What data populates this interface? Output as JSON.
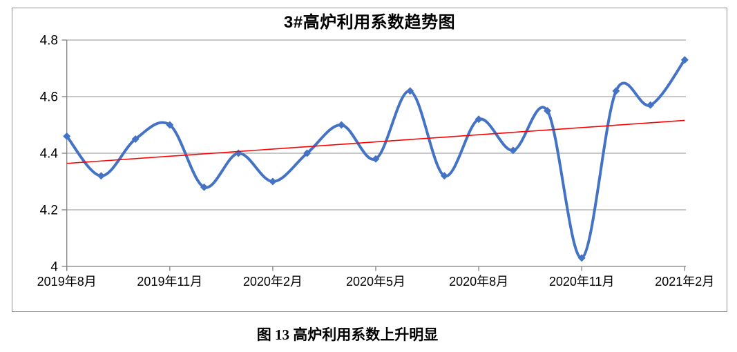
{
  "caption": "图 13 高炉利用系数上升明显",
  "chart_data": {
    "type": "line",
    "title": "3#高炉利用系数趋势图",
    "x_tick_labels": [
      "2019年8月",
      "2019年11月",
      "2020年2月",
      "2020年5月",
      "2020年8月",
      "2020年11月",
      "2021年2月"
    ],
    "points_per_tick": 3,
    "num_points": 19,
    "values": [
      4.46,
      4.32,
      4.45,
      4.5,
      4.28,
      4.4,
      4.3,
      4.4,
      4.5,
      4.38,
      4.62,
      4.32,
      4.52,
      4.41,
      4.55,
      4.03,
      4.62,
      4.57,
      4.73
    ],
    "y_tick_labels": [
      "4.8",
      "4.6",
      "4.4",
      "4.2",
      "4"
    ],
    "ylim": [
      4.0,
      4.8
    ],
    "y_step": 0.2,
    "grid": "horizontal",
    "legend": "none",
    "line": {
      "color": "#4472C4",
      "width": 4,
      "smooth": true,
      "marker": "diamond",
      "marker_size": 11
    },
    "trendline": {
      "type": "linear",
      "color": "#FF0000",
      "width": 1.6
    },
    "colors": {
      "grid": "#a6a6a6",
      "axis": "#808080",
      "text": "#000000"
    }
  }
}
